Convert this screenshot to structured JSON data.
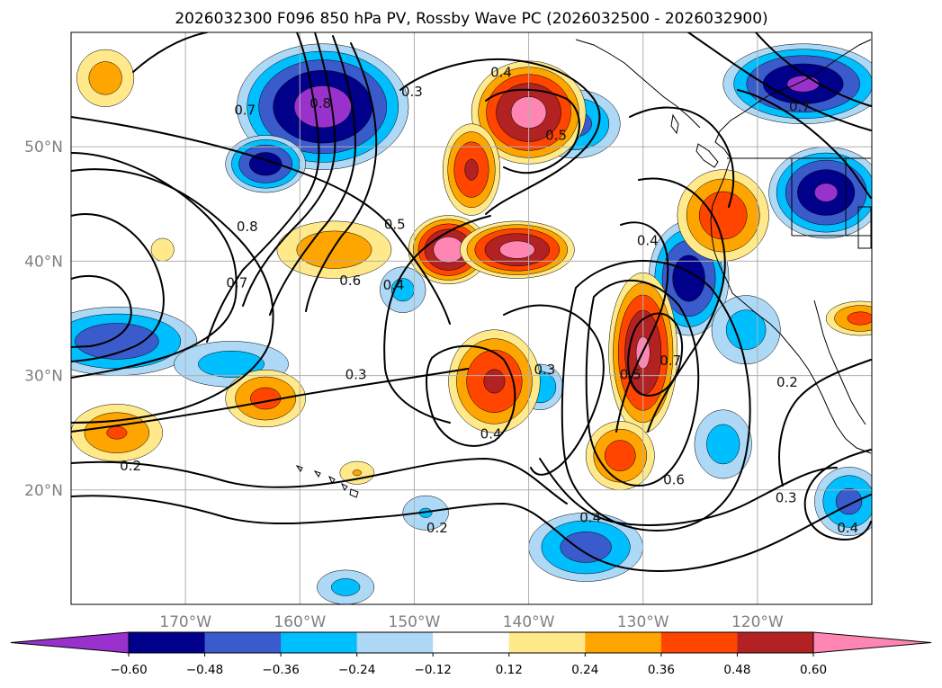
{
  "chart_data": {
    "type": "heatmap",
    "title": "2026032300 F096 850 hPa PV, Rossby Wave PC (2026032500 - 2026032900)",
    "map_extent": {
      "lon": [
        -180,
        -110
      ],
      "lat": [
        10,
        60
      ]
    },
    "grid": true,
    "x_ticks": [
      {
        "lon": -170,
        "label": "170°W"
      },
      {
        "lon": -160,
        "label": "160°W"
      },
      {
        "lon": -150,
        "label": "150°W"
      },
      {
        "lon": -140,
        "label": "140°W"
      },
      {
        "lon": -130,
        "label": "130°W"
      },
      {
        "lon": -120,
        "label": "120°W"
      }
    ],
    "y_ticks": [
      {
        "lat": 20,
        "label": "20°N"
      },
      {
        "lat": 30,
        "label": "30°N"
      },
      {
        "lat": 40,
        "label": "40°N"
      },
      {
        "lat": 50,
        "label": "50°N"
      }
    ],
    "colorbar": {
      "orientation": "horizontal",
      "levels": [
        -0.72,
        -0.6,
        -0.48,
        -0.36,
        -0.24,
        -0.12,
        0.12,
        0.24,
        0.36,
        0.48,
        0.6,
        0.72
      ],
      "colors": [
        "#9932CC",
        "#00008B",
        "#3A5BCB",
        "#00BFFF",
        "#ADD8F6",
        "#FFFFFF",
        "#FFE98A",
        "#FFA500",
        "#FF4500",
        "#B22222",
        "#FF85B3"
      ],
      "tick_values": [
        -0.6,
        -0.48,
        -0.36,
        -0.24,
        -0.12,
        0.12,
        0.24,
        0.36,
        0.48,
        0.6
      ],
      "tick_labels": [
        "−0.60",
        "−0.48",
        "−0.36",
        "−0.24",
        "−0.12",
        "0.12",
        "0.24",
        "0.36",
        "0.48",
        "0.60"
      ],
      "extend": "both"
    },
    "filled_anomalies": [
      {
        "lon": -158,
        "lat": 53.5,
        "amp": -0.66,
        "rx": 7.5,
        "ry": 5.5
      },
      {
        "lon": -163,
        "lat": 48.5,
        "amp": -0.55,
        "rx": 3.5,
        "ry": 2.5
      },
      {
        "lon": -176,
        "lat": 33,
        "amp": -0.45,
        "rx": 7,
        "ry": 3
      },
      {
        "lon": -166,
        "lat": 31,
        "amp": -0.3,
        "rx": 5,
        "ry": 2
      },
      {
        "lon": -126,
        "lat": 38.5,
        "amp": -0.55,
        "rx": 3.5,
        "ry": 5
      },
      {
        "lon": -121,
        "lat": 34,
        "amp": -0.3,
        "rx": 3,
        "ry": 3
      },
      {
        "lon": -136,
        "lat": 52,
        "amp": -0.4,
        "rx": 4,
        "ry": 3
      },
      {
        "lon": -116,
        "lat": 55.5,
        "amp": -0.6,
        "rx": 7,
        "ry": 3.5
      },
      {
        "lon": -114,
        "lat": 46,
        "amp": -0.6,
        "rx": 5,
        "ry": 4
      },
      {
        "lon": -135,
        "lat": 15,
        "amp": -0.42,
        "rx": 5,
        "ry": 3
      },
      {
        "lon": -139,
        "lat": 29,
        "amp": -0.35,
        "rx": 2,
        "ry": 2
      },
      {
        "lon": -123,
        "lat": 24,
        "amp": -0.3,
        "rx": 2.5,
        "ry": 3
      },
      {
        "lon": -112,
        "lat": 19,
        "amp": -0.4,
        "rx": 3,
        "ry": 3
      },
      {
        "lon": -156,
        "lat": 11.5,
        "amp": -0.28,
        "rx": 2.5,
        "ry": 1.5
      },
      {
        "lon": -149,
        "lat": 18,
        "amp": -0.25,
        "rx": 2,
        "ry": 1.5
      },
      {
        "lon": -151,
        "lat": 37.5,
        "amp": -0.28,
        "rx": 2,
        "ry": 2
      },
      {
        "lon": -147,
        "lat": 41,
        "amp": 0.68,
        "rx": 3.5,
        "ry": 3
      },
      {
        "lon": -141,
        "lat": 41,
        "amp": 0.65,
        "rx": 5,
        "ry": 2.5
      },
      {
        "lon": -140,
        "lat": 53,
        "amp": 0.65,
        "rx": 5,
        "ry": 4.5
      },
      {
        "lon": -145,
        "lat": 48,
        "amp": 0.5,
        "rx": 2.5,
        "ry": 4
      },
      {
        "lon": -130,
        "lat": 32,
        "amp": 0.62,
        "rx": 3,
        "ry": 7
      },
      {
        "lon": -132,
        "lat": 23,
        "amp": 0.42,
        "rx": 3,
        "ry": 3
      },
      {
        "lon": -143,
        "lat": 29.5,
        "amp": 0.5,
        "rx": 4,
        "ry": 4.5
      },
      {
        "lon": -157,
        "lat": 41,
        "amp": 0.33,
        "rx": 5,
        "ry": 2.5
      },
      {
        "lon": -163,
        "lat": 28,
        "amp": 0.4,
        "rx": 3.5,
        "ry": 2.5
      },
      {
        "lon": -176,
        "lat": 25,
        "amp": 0.36,
        "rx": 4,
        "ry": 2.5
      },
      {
        "lon": -123,
        "lat": 44,
        "amp": 0.45,
        "rx": 4,
        "ry": 4
      },
      {
        "lon": -111,
        "lat": 35,
        "amp": 0.4,
        "rx": 3,
        "ry": 1.5
      },
      {
        "lon": -177,
        "lat": 56,
        "amp": 0.3,
        "rx": 2.5,
        "ry": 2.5
      },
      {
        "lon": -172,
        "lat": 41,
        "amp": 0.2,
        "rx": 1,
        "ry": 1
      },
      {
        "lon": -155,
        "lat": 21.5,
        "amp": 0.24,
        "rx": 1.5,
        "ry": 1
      }
    ],
    "contour_labels": [
      {
        "text": "0.4",
        "lon": -142.4,
        "lat": 56.5
      },
      {
        "text": "0.3",
        "lon": -150.2,
        "lat": 54.8
      },
      {
        "text": "0.5",
        "lon": -137.6,
        "lat": 51.0
      },
      {
        "text": "0.8",
        "lon": -158.2,
        "lat": 53.8
      },
      {
        "text": "0.7",
        "lon": -164.8,
        "lat": 53.2
      },
      {
        "text": "0.8",
        "lon": -164.6,
        "lat": 43.0
      },
      {
        "text": "0.5",
        "lon": -151.7,
        "lat": 43.2
      },
      {
        "text": "0.4",
        "lon": -151.8,
        "lat": 37.9
      },
      {
        "text": "0.7",
        "lon": -165.5,
        "lat": 38.1
      },
      {
        "text": "0.6",
        "lon": -155.6,
        "lat": 38.3
      },
      {
        "text": "0.3",
        "lon": -155.1,
        "lat": 30.1
      },
      {
        "text": "0.4",
        "lon": -129.6,
        "lat": 41.8
      },
      {
        "text": "0.3",
        "lon": -138.6,
        "lat": 30.5
      },
      {
        "text": "0.5",
        "lon": -131.1,
        "lat": 30.1
      },
      {
        "text": "0.7",
        "lon": -127.6,
        "lat": 31.3
      },
      {
        "text": "0.4",
        "lon": -143.3,
        "lat": 24.9
      },
      {
        "text": "0.2",
        "lon": -174.8,
        "lat": 22.1
      },
      {
        "text": "0.6",
        "lon": -127.3,
        "lat": 20.9
      },
      {
        "text": "0.4",
        "lon": -134.6,
        "lat": 17.6
      },
      {
        "text": "0.2",
        "lon": -148.0,
        "lat": 16.7
      },
      {
        "text": "0.2",
        "lon": -117.4,
        "lat": 29.4
      },
      {
        "text": "0.3",
        "lon": -117.5,
        "lat": 19.3
      },
      {
        "text": "0.4",
        "lon": -112.1,
        "lat": 16.7
      },
      {
        "text": "0.7",
        "lon": -116.3,
        "lat": 53.5
      }
    ]
  }
}
